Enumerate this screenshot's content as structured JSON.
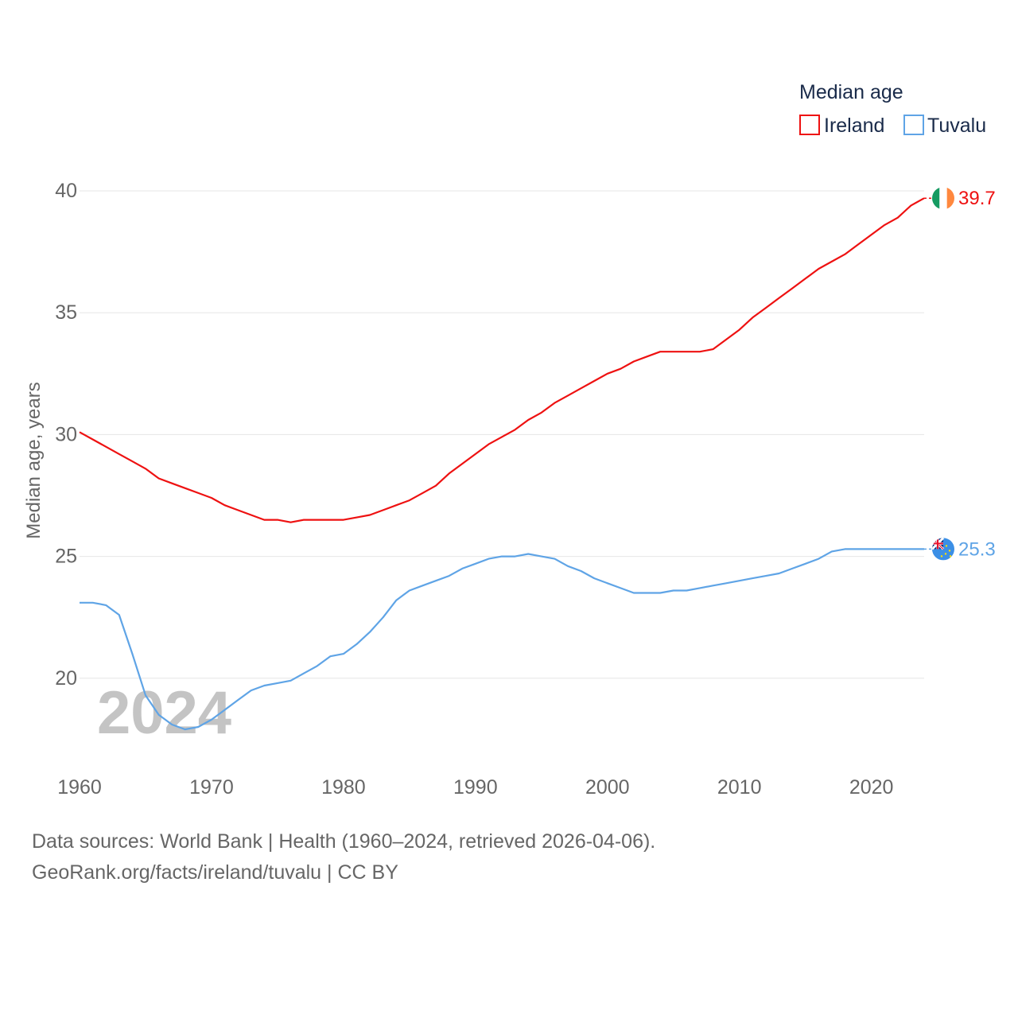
{
  "chart_data": {
    "type": "line",
    "title": "",
    "xlabel": "",
    "ylabel": "Median age, years",
    "xlim": [
      1960,
      2024
    ],
    "ylim": [
      16.5,
      40
    ],
    "x_ticks": [
      1960,
      1970,
      1980,
      1990,
      2000,
      2010,
      2020
    ],
    "y_ticks": [
      20,
      25,
      30,
      35,
      40
    ],
    "grid": true,
    "legend": {
      "title": "Median age",
      "placement": "top-right"
    },
    "year_watermark": "2024",
    "series": [
      {
        "name": "Ireland",
        "color": "#ee1111",
        "end_label": "39.7",
        "flag_icon": "ireland-flag-icon",
        "x": [
          1960,
          1961,
          1962,
          1963,
          1964,
          1965,
          1966,
          1967,
          1968,
          1969,
          1970,
          1971,
          1972,
          1973,
          1974,
          1975,
          1976,
          1977,
          1978,
          1979,
          1980,
          1981,
          1982,
          1983,
          1984,
          1985,
          1986,
          1987,
          1988,
          1989,
          1990,
          1991,
          1992,
          1993,
          1994,
          1995,
          1996,
          1997,
          1998,
          1999,
          2000,
          2001,
          2002,
          2003,
          2004,
          2005,
          2006,
          2007,
          2008,
          2009,
          2010,
          2011,
          2012,
          2013,
          2014,
          2015,
          2016,
          2017,
          2018,
          2019,
          2020,
          2021,
          2022,
          2023,
          2024
        ],
        "values": [
          30.1,
          29.8,
          29.5,
          29.2,
          28.9,
          28.6,
          28.2,
          28.0,
          27.8,
          27.6,
          27.4,
          27.1,
          26.9,
          26.7,
          26.5,
          26.5,
          26.4,
          26.5,
          26.5,
          26.5,
          26.5,
          26.6,
          26.7,
          26.9,
          27.1,
          27.3,
          27.6,
          27.9,
          28.4,
          28.8,
          29.2,
          29.6,
          29.9,
          30.2,
          30.6,
          30.9,
          31.3,
          31.6,
          31.9,
          32.2,
          32.5,
          32.7,
          33.0,
          33.2,
          33.4,
          33.4,
          33.4,
          33.4,
          33.5,
          33.9,
          34.3,
          34.8,
          35.2,
          35.6,
          36.0,
          36.4,
          36.8,
          37.1,
          37.4,
          37.8,
          38.2,
          38.6,
          38.9,
          39.4,
          39.7
        ]
      },
      {
        "name": "Tuvalu",
        "color": "#5fa4e6",
        "end_label": "25.3",
        "flag_icon": "tuvalu-flag-icon",
        "x": [
          1960,
          1961,
          1962,
          1963,
          1964,
          1965,
          1966,
          1967,
          1968,
          1969,
          1970,
          1971,
          1972,
          1973,
          1974,
          1975,
          1976,
          1977,
          1978,
          1979,
          1980,
          1981,
          1982,
          1983,
          1984,
          1985,
          1986,
          1987,
          1988,
          1989,
          1990,
          1991,
          1992,
          1993,
          1994,
          1995,
          1996,
          1997,
          1998,
          1999,
          2000,
          2001,
          2002,
          2003,
          2004,
          2005,
          2006,
          2007,
          2008,
          2009,
          2010,
          2011,
          2012,
          2013,
          2014,
          2015,
          2016,
          2017,
          2018,
          2019,
          2020,
          2021,
          2022,
          2023,
          2024
        ],
        "values": [
          23.1,
          23.1,
          23.0,
          22.6,
          21.0,
          19.3,
          18.5,
          18.1,
          17.9,
          18.0,
          18.3,
          18.7,
          19.1,
          19.5,
          19.7,
          19.8,
          19.9,
          20.2,
          20.5,
          20.9,
          21.0,
          21.4,
          21.9,
          22.5,
          23.2,
          23.6,
          23.8,
          24.0,
          24.2,
          24.5,
          24.7,
          24.9,
          25.0,
          25.0,
          25.1,
          25.0,
          24.9,
          24.6,
          24.4,
          24.1,
          23.9,
          23.7,
          23.5,
          23.5,
          23.5,
          23.6,
          23.6,
          23.7,
          23.8,
          23.9,
          24.0,
          24.1,
          24.2,
          24.3,
          24.5,
          24.7,
          24.9,
          25.2,
          25.3,
          25.3,
          25.3,
          25.3,
          25.3,
          25.3,
          25.3
        ]
      }
    ]
  },
  "footer": {
    "source_line": "Data sources: World Bank | Health (1960–2024, retrieved 2026-04-06).",
    "attribution_line": "GeoRank.org/facts/ireland/tuvalu | CC BY"
  },
  "colors": {
    "grid": "#e6e6e6",
    "tick_text": "#666666",
    "legend_text": "#1a2b4a",
    "watermark": "#c4c4c4"
  }
}
